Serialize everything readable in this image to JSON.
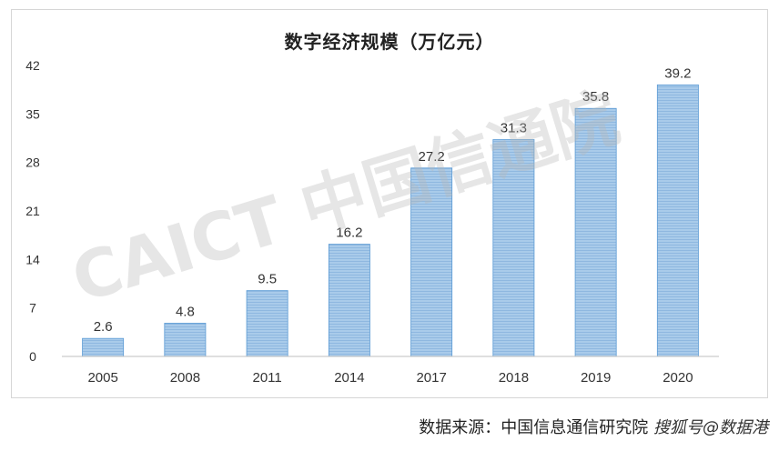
{
  "chart_data": {
    "type": "bar",
    "title": "数字经济规模（万亿元）",
    "categories": [
      "2005",
      "2008",
      "2011",
      "2014",
      "2017",
      "2018",
      "2019",
      "2020"
    ],
    "values": [
      2.6,
      4.8,
      9.5,
      16.2,
      27.2,
      31.3,
      35.8,
      39.2
    ],
    "data_labels": [
      "2.6",
      "4.8",
      "9.5",
      "16.2",
      "27.2",
      "31.3",
      "35.8",
      "39.2"
    ],
    "yticks": [
      "0",
      "7",
      "14",
      "21",
      "28",
      "35",
      "42"
    ],
    "ylim": [
      0,
      42
    ],
    "grid": false,
    "legend": "none",
    "bar_color": "#9dc3e6",
    "bar_stroke": "#5b9bd5"
  },
  "watermark": "CAICT 中国信通院",
  "source_text": "数据来源：中国信息通信研究院",
  "overlay_brand": "搜狐号@数据港"
}
